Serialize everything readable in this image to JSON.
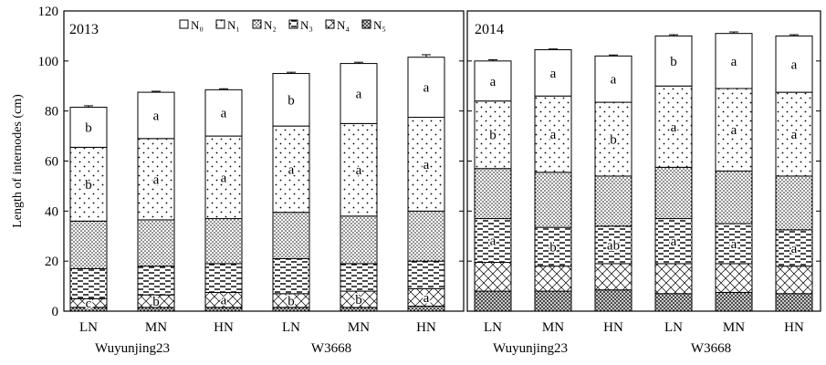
{
  "chart_data": [
    {
      "type": "bar",
      "stacked": true,
      "panel_label": "2013",
      "categories": [
        "LN",
        "MN",
        "HN",
        "LN",
        "MN",
        "HN"
      ],
      "groups": [
        {
          "label": "Wuyunjing23",
          "categories": [
            "LN",
            "MN",
            "HN"
          ]
        },
        {
          "label": "W3668",
          "categories": [
            "LN",
            "MN",
            "HN"
          ]
        }
      ],
      "ylabel": "Length of internodes (cm)",
      "ylim": [
        0,
        120
      ],
      "yticks": [
        0,
        20,
        40,
        60,
        80,
        100,
        120
      ],
      "legend": [
        "N₀",
        "N₁",
        "N₂",
        "N₃",
        "N₄",
        "N₅"
      ],
      "series": [
        {
          "name": "N₅",
          "pattern": "cross-dense",
          "values": [
            1.5,
            1.5,
            1.5,
            1.5,
            1.5,
            2.0
          ],
          "labels": [
            "",
            "",
            "",
            "",
            "",
            ""
          ]
        },
        {
          "name": "N₄",
          "pattern": "crosshatch",
          "values": [
            3.5,
            5.0,
            6.0,
            5.5,
            6.5,
            7.0
          ],
          "labels": [
            "c",
            "b",
            "a",
            "b",
            "b",
            "a"
          ]
        },
        {
          "name": "N₃",
          "pattern": "dashes",
          "values": [
            12.0,
            11.5,
            11.5,
            14.0,
            11.0,
            11.0
          ],
          "labels": [
            "",
            "",
            "",
            "",
            "",
            ""
          ]
        },
        {
          "name": "N₂",
          "pattern": "dots-dense",
          "values": [
            19.0,
            18.5,
            18.0,
            18.5,
            19.0,
            20.0
          ],
          "labels": [
            "",
            "",
            "",
            "",
            "",
            ""
          ]
        },
        {
          "name": "N₁",
          "pattern": "dots-sparse",
          "values": [
            29.5,
            32.5,
            33.0,
            34.5,
            37.0,
            37.5
          ],
          "labels": [
            "b",
            "a",
            "a",
            "a",
            "a",
            "a"
          ]
        },
        {
          "name": "N₀",
          "pattern": "empty",
          "values": [
            16.0,
            18.5,
            18.5,
            21.0,
            24.0,
            24.0
          ],
          "labels": [
            "b",
            "a",
            "a",
            "b",
            "a",
            "a"
          ]
        }
      ],
      "error": [
        0.6,
        0.4,
        0.4,
        0.5,
        0.5,
        1.0
      ],
      "grid": false
    },
    {
      "type": "bar",
      "stacked": true,
      "panel_label": "2014",
      "categories": [
        "LN",
        "MN",
        "HN",
        "LN",
        "MN",
        "HN"
      ],
      "groups": [
        {
          "label": "Wuyunjing23",
          "categories": [
            "LN",
            "MN",
            "HN"
          ]
        },
        {
          "label": "W3668",
          "categories": [
            "LN",
            "MN",
            "HN"
          ]
        }
      ],
      "ylabel": "",
      "ylim": [
        0,
        120
      ],
      "yticks": [
        0,
        20,
        40,
        60,
        80,
        100,
        120
      ],
      "legend": [],
      "series": [
        {
          "name": "N₅",
          "pattern": "cross-dense",
          "values": [
            8.0,
            8.0,
            8.5,
            7.0,
            7.5,
            7.0
          ],
          "labels": [
            "",
            "",
            "",
            "",
            "",
            ""
          ]
        },
        {
          "name": "N₄",
          "pattern": "crosshatch",
          "values": [
            11.5,
            10.0,
            10.5,
            12.0,
            11.5,
            11.0
          ],
          "labels": [
            "",
            "",
            "",
            "",
            "",
            ""
          ]
        },
        {
          "name": "N₃",
          "pattern": "dashes",
          "values": [
            17.5,
            15.5,
            15.0,
            18.0,
            16.0,
            14.5
          ],
          "labels": [
            "a",
            "b",
            "ab",
            "a",
            "a",
            "a"
          ]
        },
        {
          "name": "N₂",
          "pattern": "dots-dense",
          "values": [
            20.0,
            22.0,
            20.0,
            20.5,
            21.0,
            21.5
          ],
          "labels": [
            "",
            "",
            "",
            "",
            "",
            ""
          ]
        },
        {
          "name": "N₁",
          "pattern": "dots-sparse",
          "values": [
            27.0,
            30.5,
            29.5,
            32.5,
            33.0,
            33.5
          ],
          "labels": [
            "b",
            "a",
            "b",
            "a",
            "a",
            "a"
          ]
        },
        {
          "name": "N₀",
          "pattern": "empty",
          "values": [
            16.0,
            18.5,
            18.5,
            20.0,
            22.0,
            22.5
          ],
          "labels": [
            "a",
            "a",
            "a",
            "b",
            "a",
            "a"
          ]
        }
      ],
      "error": [
        0.5,
        0.3,
        0.4,
        0.5,
        0.6,
        0.5
      ],
      "grid": false
    }
  ]
}
